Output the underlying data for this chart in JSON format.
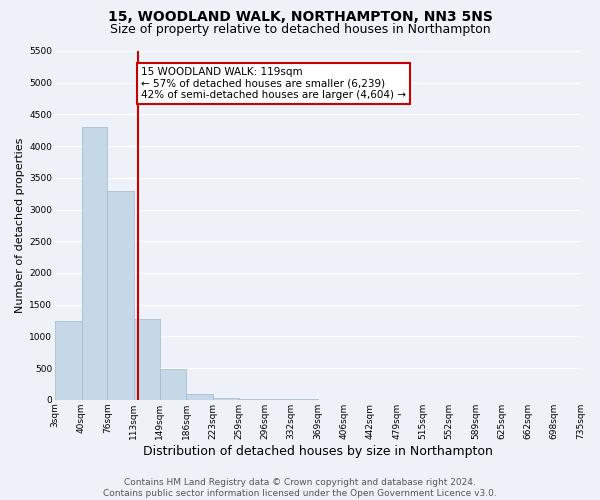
{
  "title": "15, WOODLAND WALK, NORTHAMPTON, NN3 5NS",
  "subtitle": "Size of property relative to detached houses in Northampton",
  "xlabel": "Distribution of detached houses by size in Northampton",
  "ylabel": "Number of detached properties",
  "bin_edges": [
    3,
    40,
    76,
    113,
    149,
    186,
    223,
    259,
    296,
    332,
    369,
    406,
    442,
    479,
    515,
    552,
    589,
    625,
    662,
    698,
    735
  ],
  "bin_labels": [
    "3sqm",
    "40sqm",
    "76sqm",
    "113sqm",
    "149sqm",
    "186sqm",
    "223sqm",
    "259sqm",
    "296sqm",
    "332sqm",
    "369sqm",
    "406sqm",
    "442sqm",
    "479sqm",
    "515sqm",
    "552sqm",
    "589sqm",
    "625sqm",
    "662sqm",
    "698sqm",
    "735sqm"
  ],
  "bar_heights": [
    1250,
    4300,
    3300,
    1270,
    480,
    90,
    30,
    20,
    10,
    5,
    3,
    0,
    0,
    0,
    0,
    0,
    0,
    0,
    0,
    0
  ],
  "bar_color": "#c5d8e8",
  "bar_edgecolor": "#a0b8cc",
  "bar_linewidth": 0.5,
  "redline_x": 119,
  "redline_color": "#cc0000",
  "ylim": [
    0,
    5500
  ],
  "yticks": [
    0,
    500,
    1000,
    1500,
    2000,
    2500,
    3000,
    3500,
    4000,
    4500,
    5000,
    5500
  ],
  "annotation_box_text": "15 WOODLAND WALK: 119sqm\n← 57% of detached houses are smaller (6,239)\n42% of semi-detached houses are larger (4,604) →",
  "annotation_box_color": "#cc0000",
  "annotation_box_facecolor": "white",
  "bg_color": "#eef2f8",
  "grid_color": "white",
  "footer": "Contains HM Land Registry data © Crown copyright and database right 2024.\nContains public sector information licensed under the Open Government Licence v3.0.",
  "title_fontsize": 10,
  "subtitle_fontsize": 9,
  "xlabel_fontsize": 9,
  "ylabel_fontsize": 8,
  "tick_fontsize": 6.5,
  "footer_fontsize": 6.5,
  "annot_fontsize": 7.5
}
